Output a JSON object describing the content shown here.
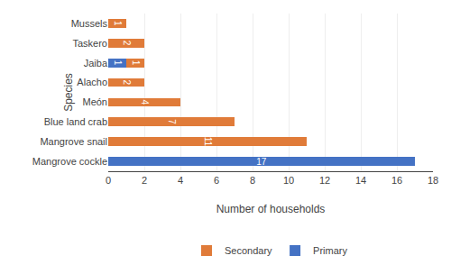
{
  "chart_data": {
    "type": "bar",
    "orientation": "horizontal",
    "stacked": true,
    "categories": [
      "Mangrove cockle",
      "Mangrove snail",
      "Blue land crab",
      "Meón",
      "Alacho",
      "Jaiba",
      "Taskero",
      "Mussels"
    ],
    "series": [
      {
        "name": "Primary",
        "color": "#4472C4",
        "values": [
          17,
          0,
          0,
          0,
          0,
          1,
          0,
          0
        ]
      },
      {
        "name": "Secondary",
        "color": "#E07B39",
        "values": [
          0,
          11,
          7,
          4,
          2,
          1,
          2,
          1
        ]
      }
    ],
    "xlabel": "Number of households",
    "ylabel": "Species",
    "xlim": [
      0,
      18
    ],
    "xticks": [
      0,
      2,
      4,
      6,
      8,
      10,
      12,
      14,
      16,
      18
    ],
    "grid": true,
    "legend": "bottom",
    "data_labels": true
  }
}
